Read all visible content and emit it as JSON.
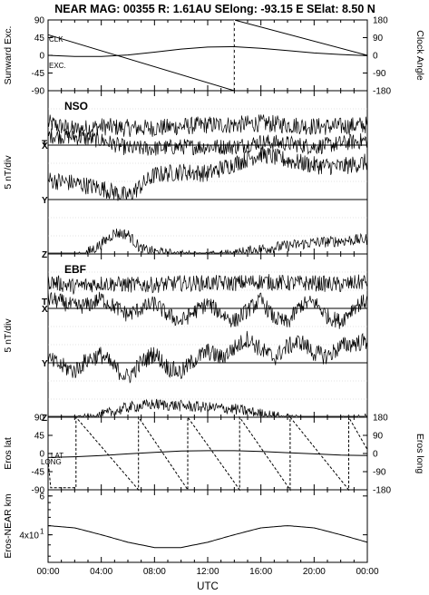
{
  "header": {
    "title": "NEAR MAG: 00355  R: 1.61AU  SElong:  -93.15 E  SElat:    8.50 N"
  },
  "chart_data": [
    {
      "type": "line",
      "panel": "sunward-clock",
      "ylabel_left": "Sunward Exc.",
      "ylabel_right": "Clock Angle",
      "ylim_left": [
        -90,
        90
      ],
      "ylim_right": [
        -180,
        180
      ],
      "yticks_left": [
        "90",
        "45",
        "0",
        "-45",
        "-90"
      ],
      "yticks_right": [
        "180",
        "90",
        "0",
        "-90",
        "-180"
      ],
      "annotations": [
        "CLK",
        "EXC."
      ],
      "series": [
        {
          "name": "CLK",
          "axis": "right",
          "style": "solid",
          "x": [
            0,
            14,
            14,
            24
          ],
          "y": [
            105,
            -180,
            180,
            0
          ]
        },
        {
          "name": "EXC.",
          "axis": "left",
          "style": "solid",
          "x": [
            0,
            2,
            4,
            6,
            8,
            10,
            12,
            14,
            16,
            18,
            20,
            22,
            24
          ],
          "y": [
            0,
            -3,
            -3,
            1,
            8,
            16,
            21,
            22,
            18,
            12,
            6,
            2,
            -1
          ]
        }
      ]
    },
    {
      "type": "line",
      "panel": "nso",
      "panel_title": "NSO",
      "ylabel": "5 nT/div",
      "components": [
        "T",
        "X",
        "Y",
        "Z"
      ],
      "gridlines": 9,
      "series": [
        {
          "name": "T",
          "baseline": -0.13,
          "amp": 1.0,
          "noise": 0.55,
          "x": [
            0,
            2,
            4,
            6,
            8,
            10,
            12,
            14,
            16,
            18,
            20,
            22,
            24
          ],
          "y": [
            1.2,
            0.8,
            1.0,
            0.9,
            0.9,
            1.0,
            1.1,
            1.1,
            1.2,
            1.1,
            1.0,
            1.0,
            1.1
          ]
        },
        {
          "name": "X",
          "baseline": 0,
          "amp": 1.0,
          "noise": 0.5,
          "x": [
            0,
            2,
            4,
            6,
            8,
            10,
            12,
            14,
            16,
            18,
            20,
            22,
            24
          ],
          "y": [
            0.6,
            0.5,
            0.3,
            -0.2,
            -0.2,
            -0.1,
            -0.1,
            -0.1,
            0.2,
            0.1,
            -0.1,
            0.1,
            0.3
          ]
        },
        {
          "name": "Y",
          "baseline": 3,
          "amp": 1.0,
          "noise": 0.55,
          "x": [
            0,
            2,
            4,
            6,
            8,
            10,
            12,
            14,
            16,
            18,
            20,
            22,
            24
          ],
          "y": [
            1.2,
            1.0,
            0.7,
            0.2,
            1.5,
            1.7,
            1.6,
            2.2,
            2.8,
            2.4,
            2.1,
            2.0,
            2.3
          ]
        },
        {
          "name": "Z",
          "baseline": 6,
          "amp": 1.0,
          "noise": 0.35,
          "x": [
            0,
            2,
            4,
            5,
            6,
            7,
            8,
            10,
            12,
            14,
            16,
            18,
            20,
            22,
            24
          ],
          "y": [
            -0.6,
            -0.4,
            0.6,
            1.3,
            1.2,
            0.3,
            0.1,
            -0.1,
            -0.2,
            0.0,
            0.3,
            0.5,
            0.7,
            0.8,
            0.9
          ]
        }
      ]
    },
    {
      "type": "line",
      "panel": "ebf",
      "panel_title": "EBF",
      "ylabel": "5 nT/div",
      "components": [
        "T",
        "X",
        "Y",
        "Z"
      ],
      "gridlines": 9,
      "series": [
        {
          "name": "T",
          "baseline": -0.4,
          "amp": 1.0,
          "noise": 0.5,
          "x": [
            0,
            2,
            4,
            6,
            8,
            10,
            12,
            14,
            16,
            18,
            20,
            22,
            24
          ],
          "y": [
            1.2,
            0.9,
            1.1,
            1.0,
            1.0,
            1.1,
            1.1,
            1.1,
            1.2,
            1.1,
            1.1,
            1.0,
            1.2
          ]
        },
        {
          "name": "X",
          "baseline": 0,
          "amp": 1.0,
          "noise": 0.5,
          "x": [
            0,
            1,
            2,
            3,
            4,
            5,
            6,
            7,
            8,
            9,
            10,
            11,
            12,
            13,
            14,
            15,
            16,
            17,
            18,
            19,
            20,
            21,
            22,
            23,
            24
          ],
          "y": [
            0.6,
            0.4,
            0.1,
            0.2,
            0.6,
            0.1,
            -0.4,
            0.0,
            0.3,
            -0.4,
            -0.8,
            -0.2,
            0.3,
            -0.3,
            -0.8,
            -0.1,
            0.5,
            -0.6,
            -0.9,
            0.2,
            0.4,
            -0.5,
            -0.8,
            0.1,
            0.5
          ]
        },
        {
          "name": "Y",
          "baseline": 3,
          "amp": 1.0,
          "noise": 0.55,
          "x": [
            0,
            1,
            2,
            3,
            4,
            5,
            6,
            7,
            8,
            9,
            10,
            11,
            12,
            13,
            14,
            15,
            16,
            17,
            18,
            19,
            20,
            21,
            22,
            23,
            24
          ],
          "y": [
            0.2,
            -0.2,
            -0.5,
            0.2,
            0.5,
            -0.3,
            -0.9,
            0.0,
            0.6,
            -0.3,
            -0.6,
            0.2,
            0.7,
            0.3,
            0.9,
            1.5,
            0.8,
            0.3,
            1.0,
            1.3,
            0.6,
            0.4,
            1.0,
            1.2,
            1.3
          ]
        },
        {
          "name": "Z",
          "baseline": 6,
          "amp": 1.0,
          "noise": 0.35,
          "x": [
            0,
            2,
            4,
            6,
            8,
            10,
            12,
            14,
            16,
            18,
            20,
            22,
            24
          ],
          "y": [
            -0.5,
            -0.3,
            0.1,
            0.6,
            0.8,
            0.7,
            0.6,
            0.5,
            0.2,
            -0.1,
            -0.4,
            -0.2,
            -0.1
          ]
        }
      ]
    },
    {
      "type": "line",
      "panel": "eros-lat-long",
      "ylabel_left": "Eros lat",
      "ylabel_right": "Eros long",
      "ylim_left": [
        -90,
        90
      ],
      "ylim_right": [
        -180,
        180
      ],
      "yticks_left": [
        "90",
        "45",
        "0",
        "-45",
        "-90"
      ],
      "yticks_right": [
        "180",
        "90",
        "0",
        "-90",
        "-180"
      ],
      "annotations": [
        "LAT",
        "LONG"
      ],
      "series": [
        {
          "name": "LAT",
          "axis": "left",
          "style": "solid",
          "x": [
            0,
            2,
            4,
            6,
            8,
            10,
            12,
            14,
            16,
            18,
            20,
            22,
            24
          ],
          "y": [
            -10,
            -8,
            -5,
            -1,
            3,
            6,
            7,
            7,
            5,
            2,
            -1,
            -4,
            -5
          ]
        },
        {
          "name": "LONG",
          "axis": "right",
          "style": "dashed",
          "x": [
            0,
            0.2,
            2.1,
            2.1,
            6.8,
            6.8,
            10.5,
            10.5,
            14.4,
            14.4,
            18.2,
            18.2,
            22.6,
            22.6,
            24
          ],
          "y": [
            -30,
            -170,
            -170,
            180,
            -180,
            180,
            -180,
            180,
            -180,
            180,
            -180,
            180,
            -180,
            180,
            20
          ]
        }
      ]
    },
    {
      "type": "line",
      "panel": "eros-near-km",
      "ylabel": "Eros-NEAR km",
      "yscale": "log",
      "yticks": [
        "6",
        "4",
        "2",
        "4x10"
      ],
      "ytick_superscript": "1",
      "series": [
        {
          "name": "",
          "x": [
            0,
            2,
            4,
            6,
            8,
            10,
            12,
            14,
            16,
            18,
            20,
            22,
            24
          ],
          "y": [
            44,
            43,
            40,
            37,
            35,
            35,
            37,
            40,
            43,
            44,
            43,
            40,
            37
          ]
        }
      ]
    }
  ],
  "xaxis": {
    "label": "UTC",
    "ticks": [
      "00:00",
      "04:00",
      "08:00",
      "12:00",
      "16:00",
      "20:00",
      "00:00"
    ]
  }
}
